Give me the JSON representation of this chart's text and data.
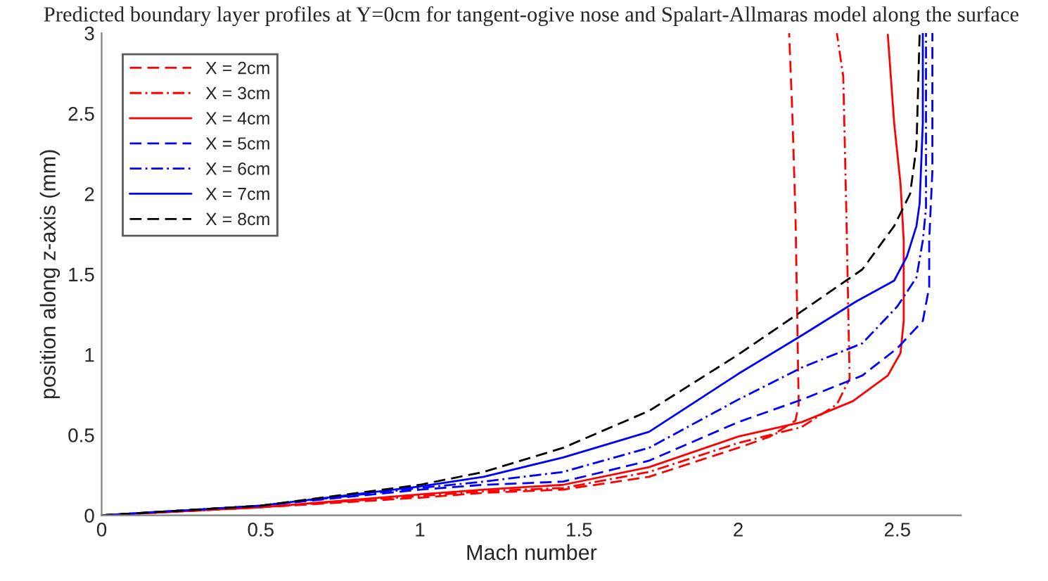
{
  "chart_data": {
    "type": "line",
    "title": "Predicted boundary layer profiles at Y=0cm for tangent-ogive nose and Spalart-Allmaras model along the surface",
    "xlabel": "Mach number",
    "ylabel": "position along z-axis (mm)",
    "xlim": [
      0,
      2.7
    ],
    "ylim": [
      0,
      3
    ],
    "xticks": [
      0,
      0.5,
      1,
      1.5,
      2,
      2.5
    ],
    "yticks": [
      0,
      0.5,
      1,
      1.5,
      2,
      2.5,
      3
    ],
    "grid": false,
    "legend": "top left",
    "marker": "none",
    "series": [
      {
        "name": "X = 2cm",
        "color": "#ff0000",
        "line_style": "dashed",
        "x": [
          0,
          0.5,
          1,
          1.2,
          1.45,
          1.72,
          2.0,
          2.1,
          2.18,
          2.19,
          2.18,
          2.17,
          2.16
        ],
        "values": [
          0,
          0.05,
          0.11,
          0.14,
          0.16,
          0.24,
          0.42,
          0.49,
          0.59,
          0.69,
          1.86,
          2.5,
          3
        ]
      },
      {
        "name": "X = 3cm",
        "color": "#ff0000",
        "line_style": "dashdot",
        "x": [
          0,
          0.5,
          1,
          1.2,
          1.45,
          1.72,
          2.0,
          2.2,
          2.31,
          2.35,
          2.34,
          2.33,
          2.31
        ],
        "values": [
          0,
          0.05,
          0.12,
          0.15,
          0.17,
          0.27,
          0.45,
          0.55,
          0.69,
          0.85,
          1.86,
          2.73,
          3
        ]
      },
      {
        "name": "X = 4cm",
        "color": "#ff0000",
        "line_style": "solid",
        "x": [
          0,
          0.5,
          1,
          1.2,
          1.45,
          1.72,
          2.0,
          2.2,
          2.36,
          2.47,
          2.51,
          2.52,
          2.52,
          2.51,
          2.49,
          2.47
        ],
        "values": [
          0,
          0.05,
          0.13,
          0.16,
          0.19,
          0.3,
          0.49,
          0.58,
          0.71,
          0.87,
          1.01,
          1.21,
          1.71,
          2.06,
          2.44,
          2.99
        ]
      },
      {
        "name": "X = 5cm",
        "color": "#0000ff",
        "line_style": "dashed",
        "x": [
          0,
          0.5,
          1,
          1.2,
          1.45,
          1.72,
          2.0,
          2.2,
          2.39,
          2.5,
          2.58,
          2.6,
          2.6,
          2.61,
          2.61
        ],
        "values": [
          0,
          0.06,
          0.16,
          0.19,
          0.21,
          0.34,
          0.58,
          0.72,
          0.87,
          1.04,
          1.21,
          1.42,
          1.71,
          2.14,
          3
        ]
      },
      {
        "name": "X = 6cm",
        "color": "#0000ff",
        "line_style": "dashdot",
        "x": [
          0,
          0.5,
          1,
          1.2,
          1.45,
          1.72,
          2.0,
          2.2,
          2.39,
          2.5,
          2.56,
          2.58,
          2.59,
          2.59,
          2.59
        ],
        "values": [
          0,
          0.06,
          0.17,
          0.21,
          0.27,
          0.42,
          0.72,
          0.92,
          1.07,
          1.3,
          1.48,
          1.71,
          1.91,
          2.44,
          3
        ]
      },
      {
        "name": "X = 7cm",
        "color": "#0000ff",
        "line_style": "solid",
        "x": [
          0,
          0.5,
          1,
          1.2,
          1.45,
          1.72,
          2.0,
          2.2,
          2.37,
          2.49,
          2.53,
          2.56,
          2.57,
          2.58,
          2.58
        ],
        "values": [
          0,
          0.06,
          0.18,
          0.24,
          0.36,
          0.52,
          0.88,
          1.12,
          1.33,
          1.46,
          1.61,
          1.8,
          1.94,
          2.44,
          3
        ]
      },
      {
        "name": "X = 8cm",
        "color": "#000000",
        "line_style": "dashed",
        "x": [
          0,
          0.5,
          1,
          1.2,
          1.45,
          1.72,
          2.0,
          2.2,
          2.39,
          2.49,
          2.54,
          2.56,
          2.57
        ],
        "values": [
          0,
          0.06,
          0.19,
          0.27,
          0.42,
          0.65,
          1.0,
          1.27,
          1.53,
          1.8,
          2.0,
          2.29,
          3
        ]
      }
    ]
  }
}
